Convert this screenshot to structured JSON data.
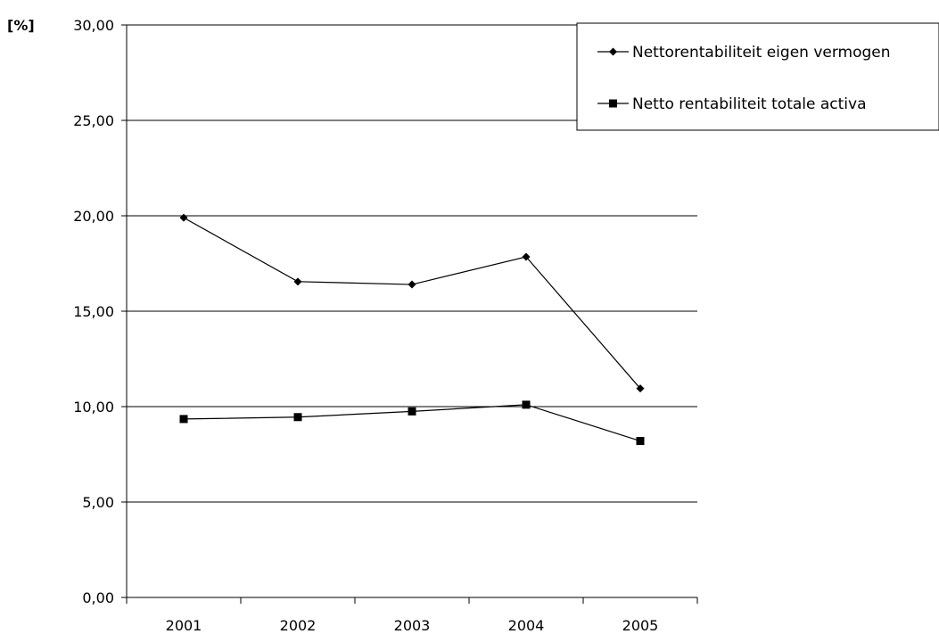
{
  "chart_data": {
    "type": "line",
    "title": "",
    "xlabel": "",
    "ylabel": "[%]",
    "categories": [
      "2001",
      "2002",
      "2003",
      "2004",
      "2005"
    ],
    "ylim": [
      0,
      30
    ],
    "ytick_values": [
      0,
      5,
      10,
      15,
      20,
      25,
      30
    ],
    "ytick_labels": [
      "0,00",
      "5,00",
      "10,00",
      "15,00",
      "20,00",
      "25,00",
      "30,00"
    ],
    "grid": "horizontal",
    "legend_position": "top-right",
    "series": [
      {
        "name": "Nettorentabiliteit eigen vermogen",
        "marker": "diamond",
        "color": "#000000",
        "values": [
          19.9,
          16.55,
          16.4,
          17.85,
          10.95
        ]
      },
      {
        "name": "Netto rentabiliteit totale activa",
        "marker": "square",
        "color": "#000000",
        "values": [
          9.35,
          9.45,
          9.75,
          10.1,
          8.2
        ]
      }
    ]
  }
}
